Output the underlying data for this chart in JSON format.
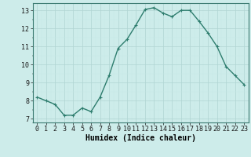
{
  "x": [
    0,
    1,
    2,
    3,
    4,
    5,
    6,
    7,
    8,
    9,
    10,
    11,
    12,
    13,
    14,
    15,
    16,
    17,
    18,
    19,
    20,
    21,
    22,
    23
  ],
  "y": [
    8.2,
    8.0,
    7.8,
    7.2,
    7.2,
    7.6,
    7.4,
    8.2,
    9.4,
    10.9,
    11.4,
    12.2,
    13.05,
    13.15,
    12.85,
    12.65,
    13.0,
    13.0,
    12.4,
    11.75,
    11.0,
    9.9,
    9.4,
    8.9
  ],
  "line_color": "#2e7d6e",
  "marker": "+",
  "marker_size": 3,
  "bg_color": "#cdecea",
  "grid_major_color": "#b0d4d2",
  "grid_minor_color": "#c8e8e6",
  "xlabel": "Humidex (Indice chaleur)",
  "ylim": [
    6.8,
    13.4
  ],
  "xlim": [
    -0.5,
    23.5
  ],
  "yticks": [
    7,
    8,
    9,
    10,
    11,
    12,
    13
  ],
  "xticks": [
    0,
    1,
    2,
    3,
    4,
    5,
    6,
    7,
    8,
    9,
    10,
    11,
    12,
    13,
    14,
    15,
    16,
    17,
    18,
    19,
    20,
    21,
    22,
    23
  ],
  "tick_label_fontsize": 6,
  "xlabel_fontsize": 7,
  "line_width": 1.0
}
